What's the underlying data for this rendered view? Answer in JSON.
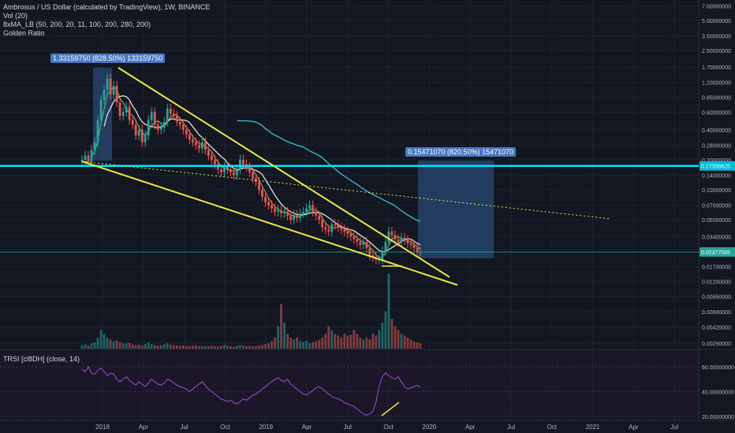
{
  "header": {
    "title": "Ambrosus / US Dollar (calculated by TradingView), 1W, BINANCE",
    "indicators": [
      "Vol (20)",
      "8xMA_LB (50, 200, 20, 11, 100, 200, 280, 200)",
      "Golden Ratio"
    ]
  },
  "rsi_pane": {
    "label": "TRSI [cl8DH] (close, 14)"
  },
  "annotations": {
    "left_measure": "1.33159750 (828.50%) 133159750",
    "right_measure": "0.15471070 (820.50%) 15471070"
  },
  "colors": {
    "background": "#131722",
    "up": "#26a69a",
    "down": "#ef5350",
    "trendline": "#e8e84a",
    "horizontal_level": "#00e5ff",
    "ma_cyan": "#34c3d4",
    "ma_green": "#4caf50",
    "ma_white": "#e0e0e0",
    "rsi_line": "#9c4fd6",
    "measure_box": "#2a4d7a"
  },
  "chart_data": [
    {
      "type": "candlestick",
      "x_axis_labels": [
        "2018",
        "Apr",
        "Jul",
        "Oct",
        "2019",
        "Apr",
        "Jul",
        "Oct",
        "2020",
        "Apr",
        "Jul",
        "Oct",
        "2021",
        "Apr",
        "Jul"
      ],
      "y_axis_labels": [
        "7.00000000",
        "5.00000000",
        "3.50000000",
        "2.50000000",
        "1.70000000",
        "1.20000000",
        "0.85000000",
        "0.60000000",
        "0.40000000",
        "0.28000000",
        "0.20000000",
        "0.14000000",
        "0.10000000",
        "0.07000000",
        "0.05000000",
        "0.03400000",
        "0.02377005",
        "0.01700000",
        "0.01200000",
        "0.00850000",
        "0.00600000",
        "0.00420000",
        "0.00290000"
      ],
      "y_scale": "log",
      "ylim": [
        0.0025,
        8.0
      ],
      "price_badges": [
        {
          "value": "0.17356625",
          "color": "#00bcd4"
        },
        {
          "value": "0.02377005",
          "color": "#26a69a"
        }
      ],
      "horizontal_levels": [
        0.17356625,
        0.02377005
      ],
      "closes": [
        0.2,
        0.22,
        0.19,
        0.25,
        0.3,
        0.5,
        0.8,
        1.0,
        1.3,
        0.9,
        1.1,
        0.75,
        0.55,
        0.6,
        0.68,
        0.5,
        0.45,
        0.35,
        0.4,
        0.3,
        0.35,
        0.5,
        0.6,
        0.45,
        0.4,
        0.42,
        0.48,
        0.65,
        0.58,
        0.55,
        0.48,
        0.45,
        0.4,
        0.36,
        0.32,
        0.3,
        0.28,
        0.26,
        0.3,
        0.25,
        0.22,
        0.2,
        0.18,
        0.16,
        0.15,
        0.17,
        0.16,
        0.15,
        0.14,
        0.16,
        0.2,
        0.18,
        0.17,
        0.15,
        0.13,
        0.12,
        0.1,
        0.085,
        0.075,
        0.07,
        0.065,
        0.06,
        0.062,
        0.058,
        0.06,
        0.055,
        0.05,
        0.056,
        0.052,
        0.058,
        0.06,
        0.065,
        0.07,
        0.06,
        0.055,
        0.05,
        0.042,
        0.04,
        0.038,
        0.045,
        0.044,
        0.042,
        0.04,
        0.038,
        0.036,
        0.034,
        0.032,
        0.03,
        0.028,
        0.03,
        0.026,
        0.022,
        0.021,
        0.02,
        0.02,
        0.024,
        0.03,
        0.038,
        0.035,
        0.032,
        0.03,
        0.033,
        0.031,
        0.029,
        0.028,
        0.026,
        0.024,
        0.0238
      ],
      "volumes": [
        1,
        1.2,
        0.9,
        1.5,
        1.8,
        3,
        5,
        4,
        3,
        2.5,
        2,
        2.2,
        1.8,
        1.5,
        1.4,
        1.6,
        1.2,
        1,
        1.1,
        0.9,
        1.3,
        1.7,
        1.2,
        1,
        0.9,
        1,
        1.2,
        1.5,
        1.1,
        1,
        0.9,
        0.8,
        0.9,
        0.8,
        0.7,
        0.8,
        0.9,
        0.7,
        0.8,
        0.7,
        0.6,
        0.8,
        0.7,
        0.6,
        0.7,
        1,
        0.8,
        0.7,
        0.6,
        0.8,
        1,
        0.9,
        0.7,
        0.8,
        0.6,
        0.7,
        0.9,
        1,
        1.2,
        1.5,
        2,
        3,
        6,
        12,
        7,
        4,
        3,
        2.5,
        3,
        2,
        1.8,
        2.2,
        1.5,
        1.8,
        2,
        2.4,
        3,
        4,
        6,
        5,
        4,
        3.5,
        3,
        4,
        3.5,
        3.8,
        5,
        4,
        3,
        2.5,
        3,
        2.5,
        4,
        3.5,
        5,
        7,
        10,
        20,
        8,
        6,
        5,
        4,
        3.5,
        3,
        2.5,
        2,
        1.8,
        1.5
      ]
    },
    {
      "type": "line",
      "title": "TRSI [cl8DH] (close, 14)",
      "y_axis_labels": [
        "60.00000000",
        "40.00000000",
        "20.00000000"
      ],
      "ylim": [
        18,
        72
      ],
      "values": [
        58,
        56,
        60,
        55,
        54,
        57,
        59,
        56,
        53,
        55,
        54,
        50,
        48,
        50,
        52,
        49,
        47,
        45,
        48,
        46,
        44,
        47,
        50,
        48,
        46,
        45,
        47,
        50,
        49,
        47,
        45,
        44,
        43,
        42,
        40,
        42,
        44,
        46,
        48,
        45,
        42,
        40,
        38,
        36,
        34,
        33,
        32,
        33,
        31,
        30,
        32,
        34,
        33,
        35,
        37,
        38,
        40,
        42,
        44,
        46,
        48,
        50,
        51,
        49,
        48,
        50,
        46,
        44,
        42,
        40,
        38,
        37,
        39,
        41,
        43,
        44,
        42,
        40,
        38,
        36,
        35,
        34,
        33,
        31,
        30,
        29,
        28,
        26,
        24,
        22,
        21,
        22,
        24,
        32,
        45,
        52,
        55,
        53,
        51,
        50,
        52,
        48,
        44,
        42,
        43,
        44,
        45,
        44
      ]
    }
  ]
}
